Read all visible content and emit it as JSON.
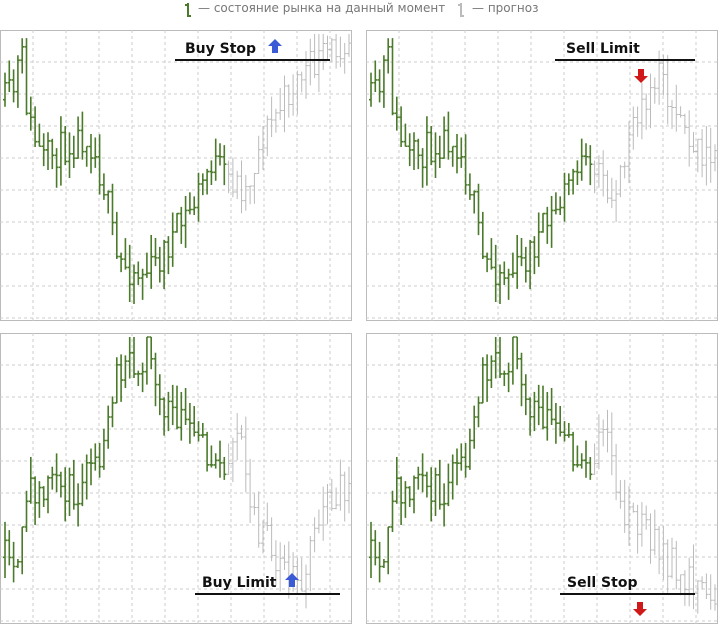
{
  "legend": {
    "current": "— состояние рынка на данный момент",
    "forecast": "— прогноз"
  },
  "panels": [
    {
      "label": "Buy Stop"
    },
    {
      "label": "Sell Limit"
    },
    {
      "label": "Buy Limit"
    },
    {
      "label": "Sell Stop"
    }
  ]
}
